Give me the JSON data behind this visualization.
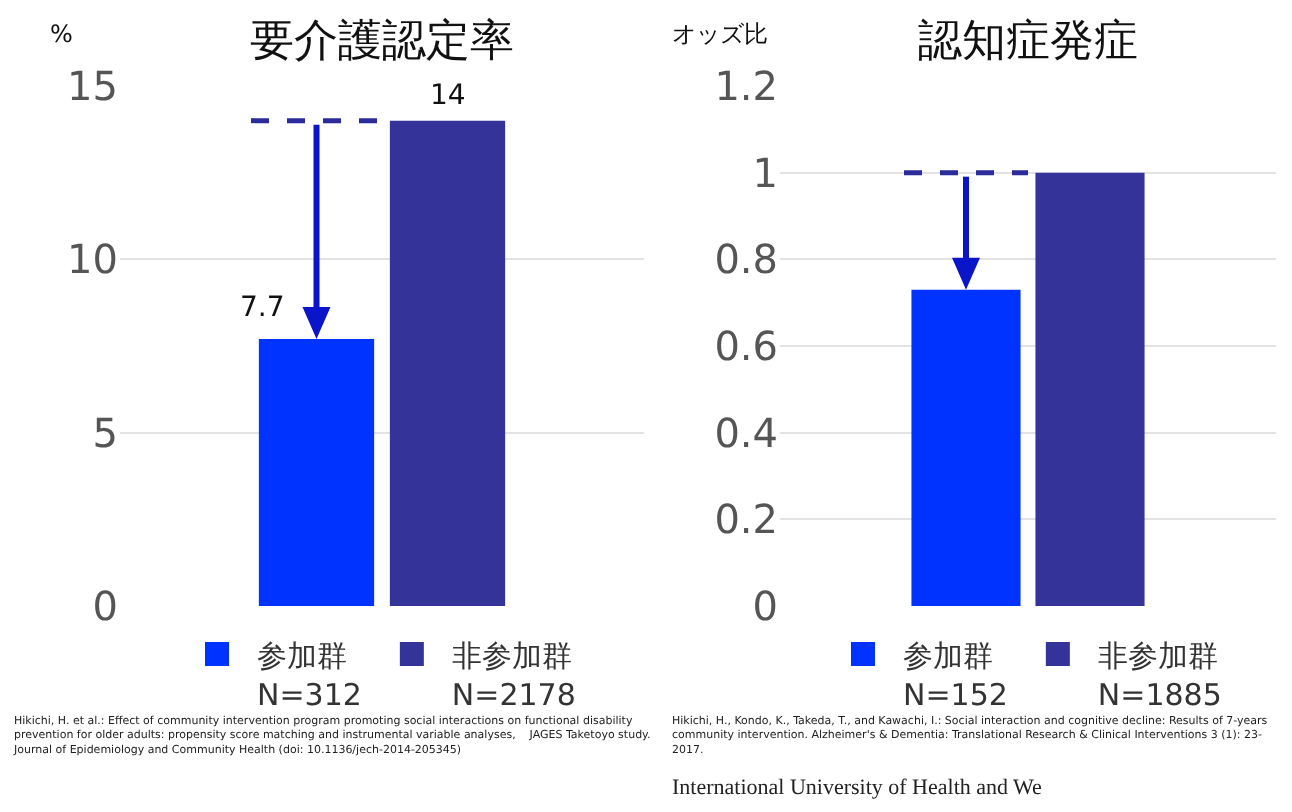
{
  "chart_data": [
    {
      "type": "bar",
      "title": "要介護認定率",
      "ylabel": "%",
      "categories": [
        null
      ],
      "series": [
        {
          "name": "参加群\nN=312",
          "color": "#0033ff",
          "values": [
            7.7
          ],
          "value_labels": [
            "7.7"
          ]
        },
        {
          "name": "非参加群\nN=2178",
          "color": "#333399",
          "values": [
            14
          ],
          "value_labels": [
            "14"
          ]
        }
      ],
      "ylim": [
        0,
        15
      ],
      "yticks": [
        0,
        5,
        10,
        15
      ],
      "grid": "y",
      "legend": "bottom",
      "tick_labels": "y",
      "ref_lines": [
        {
          "axis": "y",
          "value": 14,
          "color": "#2b2b9a",
          "line_style": "dashed"
        }
      ],
      "annotations": [
        "Hikichi, H. et al.: Effect of community intervention program promoting social interactions on functional disability\nprevention for older adults: propensity score matching and instrumental variable analyses,    JAGES Taketoyo study.\nJournal of Epidemiology and Community Health (doi: 10.1136/jech-2014-205345)"
      ]
    },
    {
      "type": "bar",
      "title": "認知症発症",
      "ylabel": "オッズ比",
      "categories": [
        null
      ],
      "series": [
        {
          "name": "参加群\nN=152",
          "color": "#0033ff",
          "values": [
            0.73
          ]
        },
        {
          "name": "非参加群\nN=1885",
          "color": "#333399",
          "values": [
            1
          ]
        }
      ],
      "ylim": [
        0,
        1.2
      ],
      "yticks": [
        0,
        0.2,
        0.4,
        0.6,
        0.8,
        1,
        1.2
      ],
      "grid": "y",
      "legend": "bottom",
      "tick_labels": "y",
      "ref_lines": [
        {
          "axis": "y",
          "value": 1,
          "color": "#2b2b9a",
          "line_style": "dashed"
        }
      ],
      "annotations": [
        "Hikichi, H., Kondo, K., Takeda, T., and Kawachi, I.: Social interaction and cognitive decline: Results of 7-years\ncommunity intervention. Alzheimer's & Dementia: Translational Research & Clinical Interventions 3 (1): 23-\n2017.",
        "International University of Health and We"
      ]
    }
  ]
}
